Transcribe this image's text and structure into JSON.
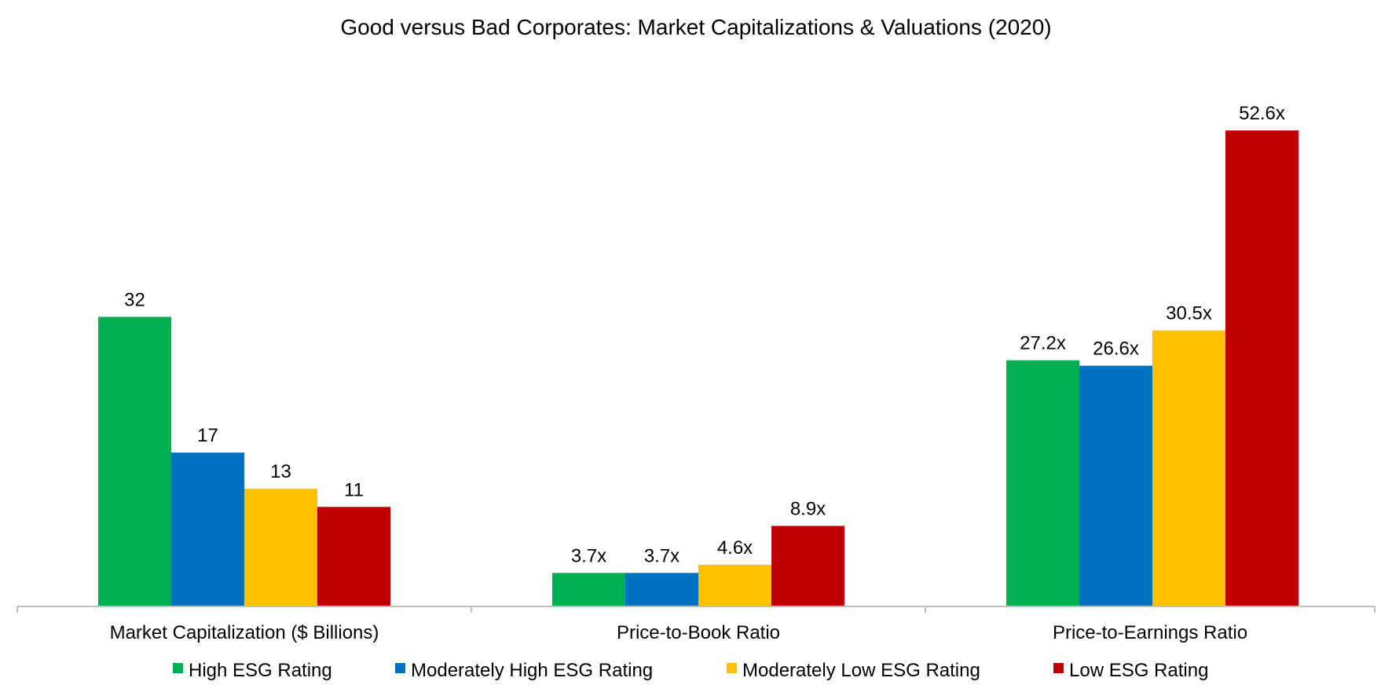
{
  "chart_data": {
    "type": "bar",
    "title": "Good versus Bad Corporates: Market Capitalizations & Valuations (2020)",
    "xlabel": "",
    "ylabel": "",
    "categories": [
      "Market Capitalization ($ Billions)",
      "Price-to-Book Ratio",
      "Price-to-Earnings Ratio"
    ],
    "series": [
      {
        "name": "High ESG Rating",
        "color": "#00B050",
        "values": [
          32,
          3.7,
          27.2
        ],
        "labels": [
          "32",
          "3.7x",
          "27.2x"
        ]
      },
      {
        "name": "Moderately High ESG Rating",
        "color": "#0070C0",
        "values": [
          17,
          3.7,
          26.6
        ],
        "labels": [
          "17",
          "3.7x",
          "26.6x"
        ]
      },
      {
        "name": "Moderately Low ESG Rating",
        "color": "#FFC000",
        "values": [
          13,
          4.6,
          30.5
        ],
        "labels": [
          "13",
          "4.6x",
          "30.5x"
        ]
      },
      {
        "name": "Low ESG Rating",
        "color": "#C00000",
        "values": [
          11,
          8.9,
          52.6
        ],
        "labels": [
          "11",
          "8.9x",
          "52.6x"
        ]
      }
    ],
    "ylim": [
      0,
      55
    ],
    "grid": false,
    "legend": "bottom",
    "axis_color": "#BFBFBF"
  }
}
